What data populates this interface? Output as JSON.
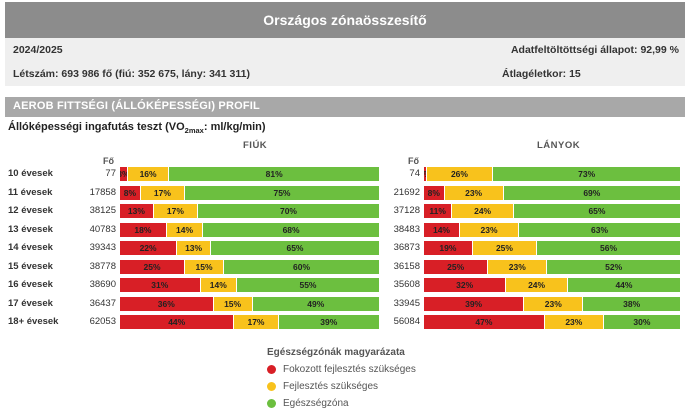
{
  "header": {
    "title": "Országos zónaösszesítő",
    "year": "2024/2025",
    "data_status": "Adatfeltöltöttségi állapot: 92,99 %",
    "headcount": "Létszám: 693 986 fő (fiú: 352 675, lány: 341 311)",
    "avg_age": "Átlagéletkor: 15"
  },
  "section": {
    "title": "AEROB FITTSÉGI (ÁLLÓKÉPESSÉGI) PROFIL"
  },
  "chart_data": {
    "type": "bar",
    "stacked": true,
    "orientation": "horizontal",
    "title_prefix": "Állóképességi ingafutás teszt (VO",
    "title_sub": "2max",
    "title_suffix": ": ml/kg/min)",
    "count_header": "Fő",
    "categories": [
      "10 évesek",
      "11 évesek",
      "12 évesek",
      "13 évesek",
      "14 évesek",
      "15 évesek",
      "16 évesek",
      "17 évesek",
      "18+ évesek"
    ],
    "groups": [
      {
        "name": "FIÚK",
        "counts": [
          "77",
          "17858",
          "38125",
          "40783",
          "39343",
          "38778",
          "38690",
          "36437",
          "62053"
        ],
        "series": [
          {
            "name": "Fokozott fejlesztés szükséges",
            "color": "#d81f26",
            "values": [
              3,
              8,
              13,
              18,
              22,
              25,
              31,
              36,
              44
            ]
          },
          {
            "name": "Fejlesztés szükséges",
            "color": "#f8c21c",
            "values": [
              16,
              17,
              17,
              14,
              13,
              15,
              14,
              15,
              17
            ]
          },
          {
            "name": "Egészségzóna",
            "color": "#6cbf3f",
            "values": [
              81,
              75,
              70,
              68,
              65,
              60,
              55,
              49,
              39
            ]
          }
        ]
      },
      {
        "name": "LÁNYOK",
        "counts": [
          "74",
          "21692",
          "37128",
          "38483",
          "36873",
          "36158",
          "35608",
          "33945",
          "56084"
        ],
        "series": [
          {
            "name": "Fokozott fejlesztés szükséges",
            "color": "#d81f26",
            "values": [
              1,
              8,
              11,
              14,
              19,
              25,
              32,
              39,
              47
            ]
          },
          {
            "name": "Fejlesztés szükséges",
            "color": "#f8c21c",
            "values": [
              26,
              23,
              24,
              23,
              25,
              23,
              24,
              23,
              23
            ]
          },
          {
            "name": "Egészségzóna",
            "color": "#6cbf3f",
            "values": [
              73,
              69,
              65,
              63,
              56,
              52,
              44,
              38,
              30
            ]
          }
        ]
      }
    ],
    "legend_title": "Egészségzónák magyarázata",
    "legend": [
      {
        "label": "Fokozott fejlesztés szükséges",
        "color": "#d81f26"
      },
      {
        "label": "Fejlesztés szükséges",
        "color": "#f8c21c"
      },
      {
        "label": "Egészségzóna",
        "color": "#6cbf3f"
      }
    ]
  }
}
